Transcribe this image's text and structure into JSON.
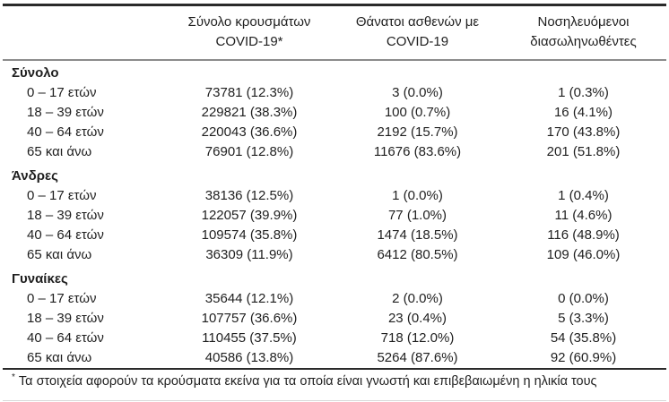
{
  "table": {
    "columns": [
      {
        "line1": "",
        "line2": ""
      },
      {
        "line1": "Σύνολο κρουσμάτων",
        "line2": "COVID-19*"
      },
      {
        "line1": "Θάνατοι ασθενών με",
        "line2": "COVID-19"
      },
      {
        "line1": "Νοσηλευόμενοι",
        "line2": "διασωληνωθέντες"
      }
    ],
    "sections": [
      {
        "title": "Σύνολο",
        "rows": [
          {
            "age": "0 – 17 ετών",
            "cases": "73781 (12.3%)",
            "deaths": "3 (0.0%)",
            "intubated": "1 (0.3%)"
          },
          {
            "age": "18 – 39 ετών",
            "cases": "229821 (38.3%)",
            "deaths": "100 (0.7%)",
            "intubated": "16 (4.1%)"
          },
          {
            "age": "40 – 64 ετών",
            "cases": "220043 (36.6%)",
            "deaths": "2192 (15.7%)",
            "intubated": "170 (43.8%)"
          },
          {
            "age": "65 και άνω",
            "cases": "76901 (12.8%)",
            "deaths": "11676 (83.6%)",
            "intubated": "201 (51.8%)"
          }
        ]
      },
      {
        "title": "Άνδρες",
        "rows": [
          {
            "age": "0 – 17 ετών",
            "cases": "38136 (12.5%)",
            "deaths": "1 (0.0%)",
            "intubated": "1 (0.4%)"
          },
          {
            "age": "18 – 39 ετών",
            "cases": "122057 (39.9%)",
            "deaths": "77 (1.0%)",
            "intubated": "11 (4.6%)"
          },
          {
            "age": "40 – 64 ετών",
            "cases": "109574 (35.8%)",
            "deaths": "1474 (18.5%)",
            "intubated": "116 (48.9%)"
          },
          {
            "age": "65 και άνω",
            "cases": "36309 (11.9%)",
            "deaths": "6412 (80.5%)",
            "intubated": "109 (46.0%)"
          }
        ]
      },
      {
        "title": "Γυναίκες",
        "rows": [
          {
            "age": "0 – 17 ετών",
            "cases": "35644 (12.1%)",
            "deaths": "2 (0.0%)",
            "intubated": "0 (0.0%)"
          },
          {
            "age": "18 – 39 ετών",
            "cases": "107757 (36.6%)",
            "deaths": "23 (0.4%)",
            "intubated": "5 (3.3%)"
          },
          {
            "age": "40 – 64 ετών",
            "cases": "110455 (37.5%)",
            "deaths": "718 (12.0%)",
            "intubated": "54 (35.8%)"
          },
          {
            "age": "65 και άνω",
            "cases": "40586 (13.8%)",
            "deaths": "5264 (87.6%)",
            "intubated": "92 (60.9%)"
          }
        ]
      }
    ],
    "footnote_marker": "*",
    "footnote_text": "Τα στοιχεία αφορούν τα κρούσματα εκείνα για τα οποία είναι γνωστή και επιβεβαιωμένη η ηλικία τους"
  }
}
